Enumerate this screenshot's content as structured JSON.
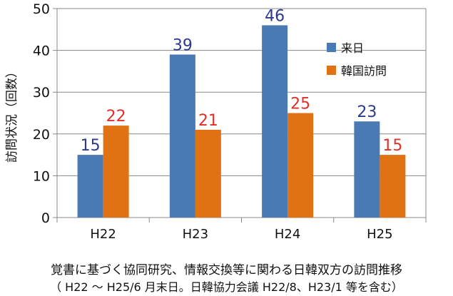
{
  "chart_data": {
    "type": "bar",
    "categories": [
      "H22",
      "H23",
      "H24",
      "H25"
    ],
    "series": [
      {
        "name": "来日",
        "values": [
          15,
          39,
          46,
          23
        ],
        "color": "#4a7ab4"
      },
      {
        "name": "韓国訪問",
        "values": [
          22,
          21,
          25,
          15
        ],
        "color": "#e07214"
      }
    ],
    "ylabel": "訪問状況（回数）",
    "ylim": [
      0,
      50
    ],
    "yticks": [
      0,
      10,
      20,
      30,
      40,
      50
    ],
    "grid": true,
    "legend": "top-right",
    "label_colors": {
      "series0": "#2b3a8f",
      "series1": "#e0302a"
    },
    "axis_color": "#888888"
  },
  "caption": {
    "line1": "覚書に基づく協同研究、情報交換等に関わる日韓双方の訪問推移",
    "line2": "（ H22 ～ H25/6 月末日。日韓協力会議 H22/8、H23/1 等を含む）"
  }
}
